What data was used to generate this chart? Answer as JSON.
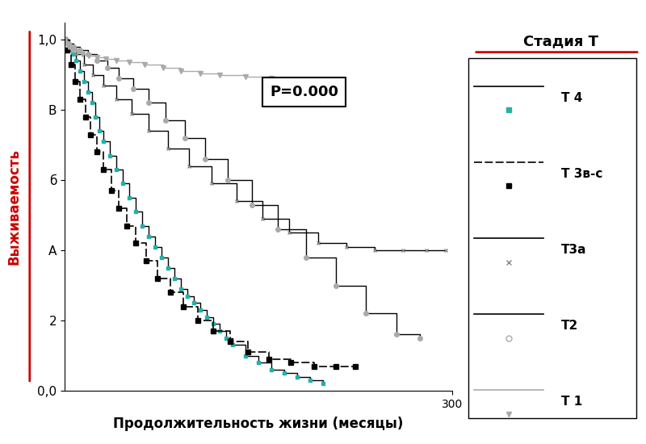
{
  "xlabel": "Продолжительность жизни (месяцы)",
  "ylabel": "Выживаемость",
  "legend_title": "Стадия T",
  "annotation": "P=0.000",
  "xlim": [
    0,
    300
  ],
  "ylim": [
    0.0,
    1.05
  ],
  "yticks": [
    0.0,
    0.2,
    0.4,
    0.6,
    0.8,
    1.0
  ],
  "ytick_labels": [
    "0,0",
    "2",
    "А",
    "б",
    "В",
    "1,0"
  ],
  "background_color": "#ffffff",
  "ylabel_color": "#cc0000",
  "legend_title_underline_color": "#cc0000",
  "t4": {
    "t": [
      0,
      3,
      6,
      9,
      12,
      15,
      18,
      21,
      24,
      27,
      30,
      35,
      40,
      45,
      50,
      55,
      60,
      65,
      70,
      75,
      80,
      85,
      90,
      95,
      100,
      105,
      110,
      115,
      120,
      125,
      130,
      140,
      150,
      160,
      170,
      180,
      190,
      200
    ],
    "s": [
      1.0,
      0.98,
      0.96,
      0.94,
      0.91,
      0.88,
      0.85,
      0.82,
      0.78,
      0.74,
      0.71,
      0.67,
      0.63,
      0.59,
      0.55,
      0.51,
      0.47,
      0.44,
      0.41,
      0.38,
      0.35,
      0.32,
      0.29,
      0.27,
      0.25,
      0.23,
      0.21,
      0.19,
      0.17,
      0.15,
      0.13,
      0.1,
      0.08,
      0.06,
      0.05,
      0.04,
      0.03,
      0.02
    ]
  },
  "t3vc": {
    "t": [
      0,
      2,
      5,
      8,
      12,
      16,
      20,
      25,
      30,
      36,
      42,
      48,
      55,
      63,
      72,
      82,
      92,
      103,
      115,
      128,
      142,
      158,
      175,
      193,
      210,
      225
    ],
    "s": [
      1.0,
      0.97,
      0.93,
      0.88,
      0.83,
      0.78,
      0.73,
      0.68,
      0.63,
      0.57,
      0.52,
      0.47,
      0.42,
      0.37,
      0.32,
      0.28,
      0.24,
      0.2,
      0.17,
      0.14,
      0.11,
      0.09,
      0.08,
      0.07,
      0.07,
      0.07
    ]
  },
  "t3a": {
    "t": [
      0,
      4,
      9,
      15,
      22,
      30,
      40,
      52,
      65,
      80,
      96,
      114,
      133,
      153,
      174,
      196,
      218,
      240,
      262,
      280,
      295
    ],
    "s": [
      1.0,
      0.98,
      0.96,
      0.93,
      0.9,
      0.87,
      0.83,
      0.79,
      0.74,
      0.69,
      0.64,
      0.59,
      0.54,
      0.49,
      0.45,
      0.42,
      0.41,
      0.4,
      0.4,
      0.4,
      0.4
    ]
  },
  "t2": {
    "t": [
      0,
      3,
      7,
      12,
      18,
      25,
      33,
      42,
      53,
      65,
      78,
      93,
      109,
      126,
      145,
      165,
      187,
      210,
      233,
      257,
      275
    ],
    "s": [
      1.0,
      0.99,
      0.98,
      0.97,
      0.96,
      0.94,
      0.92,
      0.89,
      0.86,
      0.82,
      0.77,
      0.72,
      0.66,
      0.6,
      0.53,
      0.46,
      0.38,
      0.3,
      0.22,
      0.16,
      0.15
    ]
  },
  "t1": {
    "t": [
      0,
      1,
      3,
      5,
      7,
      10,
      14,
      19,
      25,
      32,
      40,
      50,
      62,
      76,
      90,
      105,
      120,
      140,
      160,
      185,
      210
    ],
    "s": [
      1.0,
      0.99,
      0.98,
      0.975,
      0.97,
      0.965,
      0.96,
      0.955,
      0.95,
      0.945,
      0.94,
      0.935,
      0.93,
      0.92,
      0.91,
      0.905,
      0.9,
      0.895,
      0.89,
      0.885,
      0.88
    ]
  }
}
